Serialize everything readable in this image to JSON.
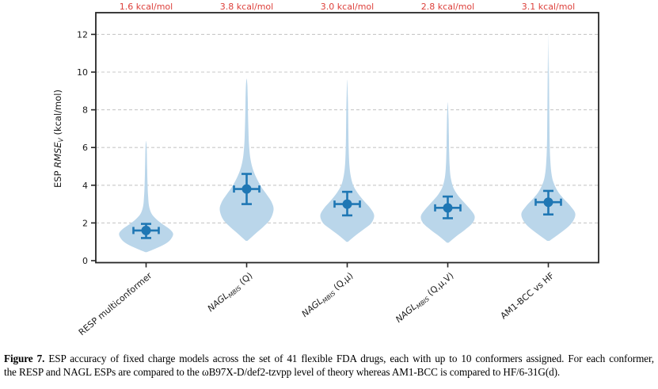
{
  "colors": {
    "violin_fill": "#bad6ea",
    "marker": "#1f77b4",
    "annotation": "#dd403b",
    "grid": "#c9c9c9",
    "spine": "#262626",
    "text": "#1a1a1a"
  },
  "chart_data": {
    "type": "violin",
    "title": "",
    "ylabel": "ESP RMSE_V (kcal/mol)",
    "ylabel_parts": [
      {
        "t": "ESP ",
        "s": "r"
      },
      {
        "t": "RMSE",
        "s": "i"
      },
      {
        "t": "V",
        "s": "sub"
      },
      {
        "t": " (kcal/mol)",
        "s": "r"
      }
    ],
    "ylim": [
      0,
      13.1
    ],
    "yticks": [
      0,
      2,
      4,
      6,
      8,
      10,
      12
    ],
    "grid": "horizontal dashed at yticks",
    "legend": "none",
    "categories": [
      "RESP multiconformer",
      "NAGL_MBIS (Q)",
      "NAGL_MBIS (Q,μ)",
      "NAGL_MBIS (Q,μ,V)",
      "AM1-BCC vs HF"
    ],
    "top_annotations": [
      "1.6 kcal/mol",
      "3.8 kcal/mol",
      "3.0 kcal/mol",
      "2.8 kcal/mol",
      "3.1 kcal/mol"
    ],
    "series": [
      {
        "name": "RESP multiconformer",
        "label_parts": [
          {
            "t": "RESP multiconformer",
            "s": "r"
          }
        ],
        "mean": 1.6,
        "err_lo": 1.2,
        "err_hi": 1.95,
        "range": [
          0.45,
          6.35
        ],
        "profile": [
          [
            0.45,
            0.03
          ],
          [
            0.7,
            0.45
          ],
          [
            0.95,
            0.78
          ],
          [
            1.2,
            0.95
          ],
          [
            1.45,
            1.0
          ],
          [
            1.7,
            0.85
          ],
          [
            1.95,
            0.6
          ],
          [
            2.2,
            0.38
          ],
          [
            2.5,
            0.2
          ],
          [
            2.9,
            0.11
          ],
          [
            3.4,
            0.075
          ],
          [
            4.0,
            0.055
          ],
          [
            4.8,
            0.04
          ],
          [
            5.6,
            0.03
          ],
          [
            6.1,
            0.018
          ],
          [
            6.35,
            0.0
          ]
        ]
      },
      {
        "name": "NAGL_MBIS (Q)",
        "label_parts": [
          {
            "t": "NAGL",
            "s": "i"
          },
          {
            "t": "MBIS",
            "s": "sub"
          },
          {
            "t": " (Q)",
            "s": "r"
          }
        ],
        "mean": 3.8,
        "err_lo": 3.0,
        "err_hi": 4.6,
        "range": [
          1.05,
          9.65
        ],
        "profile": [
          [
            1.05,
            0.03
          ],
          [
            1.4,
            0.3
          ],
          [
            1.8,
            0.62
          ],
          [
            2.2,
            0.88
          ],
          [
            2.7,
            1.0
          ],
          [
            3.1,
            0.93
          ],
          [
            3.5,
            0.75
          ],
          [
            3.9,
            0.55
          ],
          [
            4.4,
            0.36
          ],
          [
            4.9,
            0.22
          ],
          [
            5.5,
            0.13
          ],
          [
            6.2,
            0.085
          ],
          [
            7.0,
            0.065
          ],
          [
            7.8,
            0.05
          ],
          [
            8.6,
            0.04
          ],
          [
            9.3,
            0.025
          ],
          [
            9.65,
            0.0
          ]
        ]
      },
      {
        "name": "NAGL_MBIS (Q,μ)",
        "label_parts": [
          {
            "t": "NAGL",
            "s": "i"
          },
          {
            "t": "MBIS",
            "s": "sub"
          },
          {
            "t": " (Q,μ)",
            "s": "r"
          }
        ],
        "mean": 3.0,
        "err_lo": 2.4,
        "err_hi": 3.65,
        "range": [
          1.0,
          9.6
        ],
        "profile": [
          [
            1.0,
            0.03
          ],
          [
            1.35,
            0.32
          ],
          [
            1.7,
            0.65
          ],
          [
            2.0,
            0.9
          ],
          [
            2.4,
            1.0
          ],
          [
            2.8,
            0.85
          ],
          [
            3.2,
            0.6
          ],
          [
            3.6,
            0.38
          ],
          [
            4.0,
            0.22
          ],
          [
            4.5,
            0.13
          ],
          [
            5.1,
            0.08
          ],
          [
            5.9,
            0.055
          ],
          [
            6.8,
            0.045
          ],
          [
            7.8,
            0.035
          ],
          [
            8.8,
            0.022
          ],
          [
            9.6,
            0.0
          ]
        ]
      },
      {
        "name": "NAGL_MBIS (Q,μ,V)",
        "label_parts": [
          {
            "t": "NAGL",
            "s": "i"
          },
          {
            "t": "MBIS",
            "s": "sub"
          },
          {
            "t": " (Q,μ,V)",
            "s": "r"
          }
        ],
        "mean": 2.8,
        "err_lo": 2.25,
        "err_hi": 3.4,
        "range": [
          0.95,
          8.4
        ],
        "profile": [
          [
            0.95,
            0.03
          ],
          [
            1.3,
            0.32
          ],
          [
            1.65,
            0.65
          ],
          [
            2.0,
            0.92
          ],
          [
            2.35,
            1.0
          ],
          [
            2.7,
            0.85
          ],
          [
            3.1,
            0.6
          ],
          [
            3.5,
            0.36
          ],
          [
            3.9,
            0.2
          ],
          [
            4.4,
            0.11
          ],
          [
            5.0,
            0.07
          ],
          [
            5.8,
            0.05
          ],
          [
            6.6,
            0.04
          ],
          [
            7.5,
            0.028
          ],
          [
            8.4,
            0.0
          ]
        ]
      },
      {
        "name": "AM1-BCC vs HF",
        "label_parts": [
          {
            "t": "AM1-BCC vs HF",
            "s": "r"
          }
        ],
        "mean": 3.1,
        "err_lo": 2.45,
        "err_hi": 3.7,
        "range": [
          1.05,
          12.3
        ],
        "profile": [
          [
            1.05,
            0.04
          ],
          [
            1.4,
            0.38
          ],
          [
            1.75,
            0.7
          ],
          [
            2.1,
            0.92
          ],
          [
            2.5,
            1.0
          ],
          [
            2.9,
            0.82
          ],
          [
            3.3,
            0.56
          ],
          [
            3.7,
            0.34
          ],
          [
            4.2,
            0.18
          ],
          [
            4.7,
            0.11
          ],
          [
            5.4,
            0.07
          ],
          [
            6.2,
            0.05
          ],
          [
            7.2,
            0.04
          ],
          [
            8.4,
            0.032
          ],
          [
            9.6,
            0.025
          ],
          [
            10.8,
            0.018
          ],
          [
            11.7,
            0.01
          ],
          [
            12.3,
            0.0
          ]
        ],
        "fade_top": true
      }
    ]
  },
  "caption": {
    "label": "Figure 7.",
    "line1": " ESP accuracy of fixed charge models across the set of 41 flexible FDA drugs, each with up to 10 conformers assigned. For each conformer,",
    "line2": "the RESP and NAGL ESPs are compared to the ωB97X-D/def2-tzvpp level of theory whereas AM1-BCC is compared to HF/6-31G(d).",
    "text": "ESP accuracy of fixed charge models across the set of 41 flexible FDA drugs, each with up to 10 conformers assigned. For each conformer, the RESP and NAGL ESPs are compared to the ωB97X-D/def2-tzvpp level of theory whereas AM1-BCC is compared to HF/6-31G(d)."
  }
}
